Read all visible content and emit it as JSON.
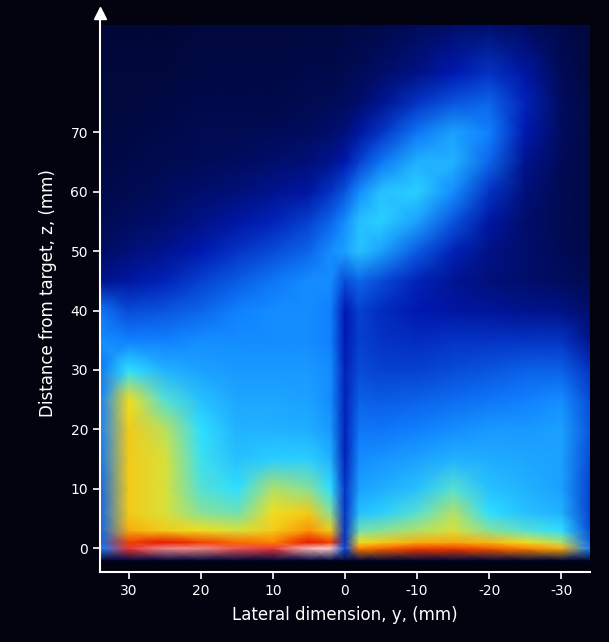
{
  "chart_data": {
    "type": "heatmap",
    "x_label": "Lateral dimension, y, (mm)",
    "y_label": "Distance from target, z, (mm)",
    "xlim": [
      34,
      -34
    ],
    "ylim": [
      -4,
      90
    ],
    "xticks": [
      30,
      20,
      10,
      0,
      -10,
      -20,
      -30
    ],
    "yticks": [
      0,
      10,
      20,
      30,
      40,
      50,
      60,
      70
    ],
    "grid": false,
    "x": [
      34,
      30,
      25,
      20,
      15,
      10,
      5,
      2,
      0,
      -2,
      -5,
      -10,
      -15,
      -20,
      -25,
      -30,
      -34
    ],
    "y": [
      -2,
      0,
      1,
      3,
      6,
      10,
      15,
      20,
      25,
      30,
      35,
      40,
      45,
      50,
      55,
      60,
      65,
      70,
      75,
      80,
      88
    ],
    "cell_range": [
      0,
      100
    ],
    "cells": [
      [
        3,
        3,
        3,
        3,
        3,
        3,
        3,
        3,
        3,
        3,
        3,
        3,
        3,
        3,
        3,
        3,
        3
      ],
      [
        40,
        92,
        95,
        95,
        93,
        92,
        97,
        98,
        30,
        80,
        82,
        85,
        85,
        83,
        80,
        75,
        40
      ],
      [
        35,
        85,
        88,
        85,
        82,
        80,
        88,
        85,
        25,
        70,
        72,
        75,
        76,
        74,
        70,
        65,
        35
      ],
      [
        35,
        75,
        72,
        70,
        68,
        72,
        78,
        72,
        25,
        60,
        62,
        65,
        68,
        62,
        58,
        55,
        30
      ],
      [
        35,
        72,
        68,
        62,
        60,
        70,
        72,
        62,
        25,
        50,
        52,
        58,
        65,
        55,
        50,
        48,
        28
      ],
      [
        35,
        72,
        68,
        58,
        55,
        65,
        62,
        55,
        25,
        45,
        47,
        50,
        58,
        50,
        48,
        45,
        28
      ],
      [
        38,
        72,
        68,
        56,
        50,
        52,
        52,
        48,
        22,
        42,
        43,
        45,
        48,
        47,
        46,
        45,
        30
      ],
      [
        40,
        72,
        66,
        55,
        48,
        48,
        47,
        44,
        22,
        38,
        38,
        40,
        42,
        44,
        44,
        45,
        32
      ],
      [
        40,
        70,
        58,
        50,
        46,
        46,
        45,
        42,
        22,
        34,
        33,
        34,
        36,
        38,
        40,
        42,
        30
      ],
      [
        38,
        55,
        48,
        45,
        44,
        44,
        44,
        42,
        22,
        30,
        28,
        28,
        30,
        32,
        34,
        34,
        25
      ],
      [
        42,
        40,
        40,
        42,
        42,
        42,
        42,
        40,
        20,
        28,
        25,
        24,
        25,
        25,
        25,
        25,
        15
      ],
      [
        38,
        30,
        32,
        35,
        40,
        42,
        42,
        40,
        20,
        28,
        24,
        20,
        18,
        17,
        15,
        14,
        10
      ],
      [
        15,
        18,
        22,
        28,
        33,
        38,
        42,
        42,
        30,
        35,
        30,
        22,
        16,
        12,
        10,
        8,
        6
      ],
      [
        8,
        12,
        15,
        20,
        25,
        30,
        35,
        42,
        45,
        50,
        45,
        33,
        22,
        14,
        10,
        7,
        5
      ],
      [
        6,
        8,
        10,
        14,
        18,
        22,
        28,
        35,
        42,
        50,
        52,
        45,
        32,
        18,
        10,
        6,
        4
      ],
      [
        5,
        6,
        8,
        10,
        12,
        15,
        18,
        25,
        32,
        42,
        50,
        52,
        42,
        25,
        12,
        6,
        4
      ],
      [
        4,
        5,
        6,
        7,
        8,
        10,
        12,
        15,
        20,
        28,
        38,
        48,
        48,
        35,
        15,
        7,
        4
      ],
      [
        3,
        4,
        5,
        6,
        6,
        7,
        8,
        10,
        12,
        18,
        25,
        38,
        45,
        40,
        20,
        8,
        4
      ],
      [
        3,
        3,
        4,
        5,
        5,
        5,
        6,
        7,
        8,
        10,
        15,
        25,
        32,
        35,
        22,
        8,
        4
      ],
      [
        3,
        3,
        3,
        4,
        4,
        4,
        5,
        5,
        6,
        7,
        9,
        14,
        20,
        25,
        18,
        7,
        3
      ],
      [
        2,
        2,
        2,
        3,
        3,
        3,
        3,
        3,
        4,
        4,
        5,
        7,
        9,
        10,
        8,
        5,
        3
      ]
    ]
  }
}
